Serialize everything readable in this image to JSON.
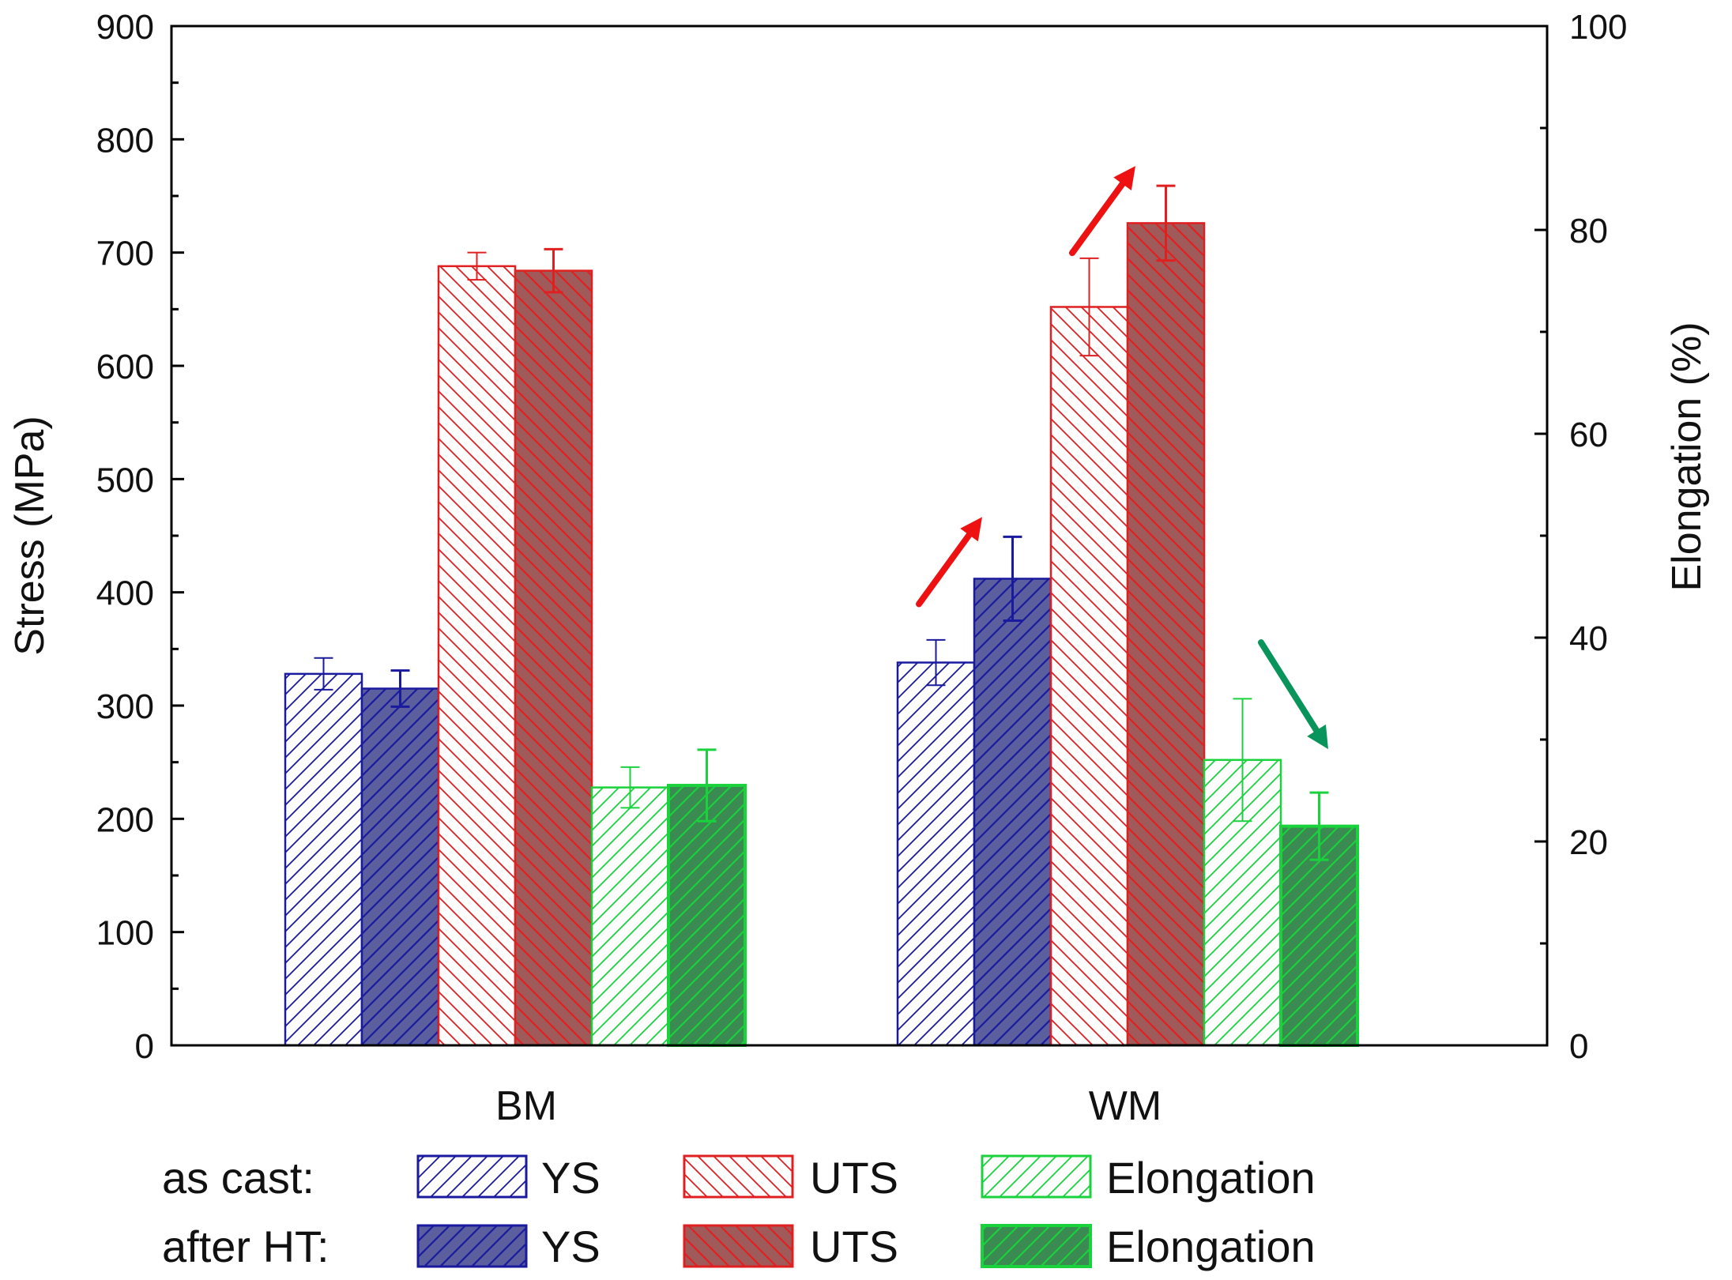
{
  "chart_data": {
    "type": "bar",
    "categories": [
      "BM",
      "WM"
    ],
    "ylabel_left": "Stress (MPa)",
    "ylabel_right": "Elongation (%)",
    "ylim_left": [
      0,
      900
    ],
    "ylim_right": [
      0,
      100
    ],
    "yticks_left": [
      "0",
      "100",
      "200",
      "300",
      "400",
      "500",
      "600",
      "700",
      "800",
      "900"
    ],
    "yticks_right": [
      "0",
      "20",
      "40",
      "60",
      "80",
      "100"
    ],
    "series": [
      {
        "key": "ys_cast",
        "name": "YS",
        "condition": "as cast",
        "axis": "left",
        "values": [
          328,
          338
        ],
        "errors": [
          14,
          20
        ],
        "color": "#1a1a9e",
        "hatch": "forward",
        "filled": false
      },
      {
        "key": "ys_ht",
        "name": "YS",
        "condition": "after HT",
        "axis": "left",
        "values": [
          315,
          412
        ],
        "errors": [
          16,
          37
        ],
        "color": "#1a1a9e",
        "fill": "#5b5f9e",
        "hatch": "forward",
        "filled": true
      },
      {
        "key": "uts_cast",
        "name": "UTS",
        "condition": "as cast",
        "axis": "left",
        "values": [
          688,
          652
        ],
        "errors": [
          12,
          43
        ],
        "color": "#e02020",
        "hatch": "backward",
        "filled": false
      },
      {
        "key": "uts_ht",
        "name": "UTS",
        "condition": "after HT",
        "axis": "left",
        "values": [
          684,
          726
        ],
        "errors": [
          19,
          33
        ],
        "color": "#e02020",
        "fill": "#a05a5a",
        "hatch": "backward",
        "filled": true
      },
      {
        "key": "el_cast",
        "name": "Elongation",
        "condition": "as cast",
        "axis": "right",
        "values": [
          25.3,
          28.0
        ],
        "errors": [
          2.0,
          6.0
        ],
        "color": "#19d23c",
        "hatch": "forward",
        "filled": false
      },
      {
        "key": "el_ht",
        "name": "Elongation",
        "condition": "after HT",
        "axis": "right",
        "values": [
          25.5,
          21.5
        ],
        "errors": [
          3.5,
          3.3
        ],
        "color": "#19d23c",
        "fill": "#3a8a52",
        "hatch": "forward",
        "filled": true
      }
    ],
    "annotations": [
      {
        "type": "arrow",
        "category": "WM",
        "series": "ys_ht",
        "direction": "up",
        "color": "#ee1111"
      },
      {
        "type": "arrow",
        "category": "WM",
        "series": "uts_ht",
        "direction": "up",
        "color": "#ee1111"
      },
      {
        "type": "arrow",
        "category": "WM",
        "series": "el_ht",
        "direction": "down",
        "color": "#08945a"
      }
    ]
  },
  "legend": {
    "row1_label": "as cast:",
    "row2_label": "after HT:",
    "items": [
      {
        "row": 1,
        "text": "YS",
        "series": "ys_cast"
      },
      {
        "row": 1,
        "text": "UTS",
        "series": "uts_cast"
      },
      {
        "row": 1,
        "text": "Elongation",
        "series": "el_cast"
      },
      {
        "row": 2,
        "text": "YS",
        "series": "ys_ht"
      },
      {
        "row": 2,
        "text": "UTS",
        "series": "uts_ht"
      },
      {
        "row": 2,
        "text": "Elongation",
        "series": "el_ht"
      }
    ]
  }
}
